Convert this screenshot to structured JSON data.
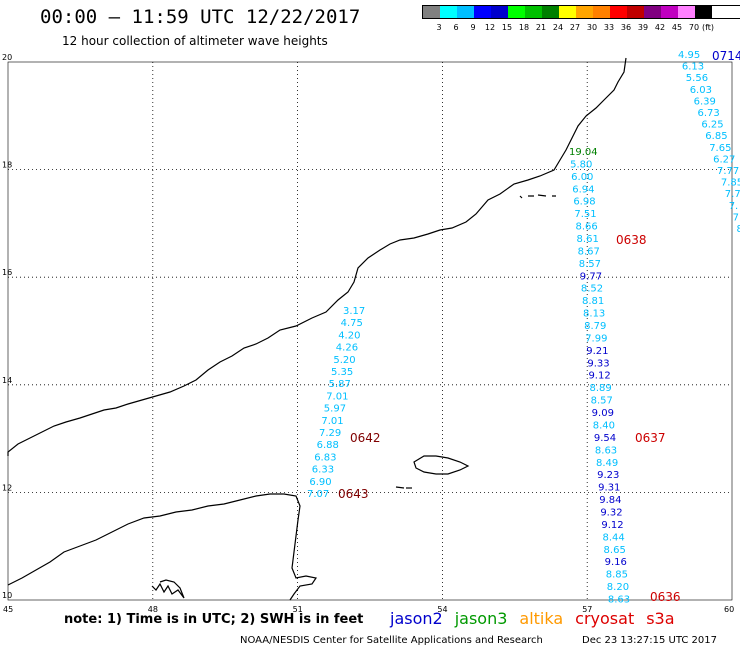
{
  "header": {
    "title": "00:00 – 11:59 UTC 12/22/2017",
    "subtitle": "12 hour collection of altimeter wave heights"
  },
  "legend": {
    "colors": [
      "#808080",
      "#00ffff",
      "#00bfff",
      "#0000ff",
      "#0000cd",
      "#00ff00",
      "#00c000",
      "#008000",
      "#ffff00",
      "#ffa500",
      "#ff8000",
      "#ff0000",
      "#c00000",
      "#800080",
      "#c000c0",
      "#ff80ff",
      "#000000"
    ],
    "labels": [
      "3",
      "6",
      "9",
      "12",
      "15",
      "18",
      "21",
      "24",
      "27",
      "30",
      "33",
      "36",
      "39",
      "42",
      "45",
      "70"
    ],
    "unit": "(ft)"
  },
  "axes": {
    "x_ticks": [
      "45",
      "48",
      "51",
      "54",
      "57",
      "60"
    ],
    "y_ticks": [
      "20",
      "18",
      "16",
      "14",
      "12",
      "10"
    ]
  },
  "passes": [
    {
      "id": "0642",
      "color": "#800000"
    },
    {
      "id": "0643",
      "color": "#800000"
    },
    {
      "id": "0638",
      "color": "#cc0000"
    },
    {
      "id": "0637",
      "color": "#cc0000"
    },
    {
      "id": "0636",
      "color": "#cc0000"
    },
    {
      "id": "0714",
      "color": "#0000cc"
    }
  ],
  "tracks": {
    "west": [
      {
        "v": "3.17",
        "c": "#00bfff"
      },
      {
        "v": "4.75",
        "c": "#00bfff"
      },
      {
        "v": "4.20",
        "c": "#00bfff"
      },
      {
        "v": "4.26",
        "c": "#00bfff"
      },
      {
        "v": "5.20",
        "c": "#00bfff"
      },
      {
        "v": "5.35",
        "c": "#00bfff"
      },
      {
        "v": "5.87",
        "c": "#00bfff"
      },
      {
        "v": "7.01",
        "c": "#00bfff"
      },
      {
        "v": "5.97",
        "c": "#00bfff"
      },
      {
        "v": "7.01",
        "c": "#00bfff"
      },
      {
        "v": "7.29",
        "c": "#00bfff"
      },
      {
        "v": "6.88",
        "c": "#00bfff"
      },
      {
        "v": "6.83",
        "c": "#00bfff"
      },
      {
        "v": "6.33",
        "c": "#00bfff"
      },
      {
        "v": "6.90",
        "c": "#00bfff"
      },
      {
        "v": "7.07",
        "c": "#00bfff"
      }
    ],
    "middle": [
      {
        "v": "19.04",
        "c": "#008000"
      },
      {
        "v": "5.80",
        "c": "#00bfff"
      },
      {
        "v": "6.00",
        "c": "#00bfff"
      },
      {
        "v": "6.94",
        "c": "#00bfff"
      },
      {
        "v": "6.98",
        "c": "#00bfff"
      },
      {
        "v": "7.51",
        "c": "#00bfff"
      },
      {
        "v": "8.66",
        "c": "#00bfff"
      },
      {
        "v": "8.61",
        "c": "#00bfff"
      },
      {
        "v": "8.67",
        "c": "#00bfff"
      },
      {
        "v": "8.57",
        "c": "#00bfff"
      },
      {
        "v": "9.77",
        "c": "#0000cd"
      },
      {
        "v": "8.52",
        "c": "#00bfff"
      },
      {
        "v": "8.81",
        "c": "#00bfff"
      },
      {
        "v": "8.13",
        "c": "#00bfff"
      },
      {
        "v": "8.79",
        "c": "#00bfff"
      },
      {
        "v": "7.99",
        "c": "#00bfff"
      },
      {
        "v": "9.21",
        "c": "#0000cd"
      },
      {
        "v": "9.33",
        "c": "#0000cd"
      },
      {
        "v": "9.12",
        "c": "#0000cd"
      },
      {
        "v": "8.89",
        "c": "#00bfff"
      },
      {
        "v": "8.57",
        "c": "#00bfff"
      },
      {
        "v": "9.09",
        "c": "#0000cd"
      },
      {
        "v": "8.40",
        "c": "#00bfff"
      },
      {
        "v": "9.54",
        "c": "#0000cd"
      },
      {
        "v": "8.63",
        "c": "#00bfff"
      },
      {
        "v": "8.49",
        "c": "#00bfff"
      },
      {
        "v": "9.23",
        "c": "#0000cd"
      },
      {
        "v": "9.31",
        "c": "#0000cd"
      },
      {
        "v": "9.84",
        "c": "#0000cd"
      },
      {
        "v": "9.32",
        "c": "#0000cd"
      },
      {
        "v": "9.12",
        "c": "#0000cd"
      },
      {
        "v": "8.44",
        "c": "#00bfff"
      },
      {
        "v": "8.65",
        "c": "#00bfff"
      },
      {
        "v": "9.16",
        "c": "#0000cd"
      },
      {
        "v": "8.85",
        "c": "#00bfff"
      },
      {
        "v": "8.20",
        "c": "#00bfff"
      },
      {
        "v": "8.63",
        "c": "#00bfff"
      }
    ],
    "east": [
      {
        "v": "4.95",
        "c": "#00bfff"
      },
      {
        "v": "6.13",
        "c": "#00bfff"
      },
      {
        "v": "5.56",
        "c": "#00bfff"
      },
      {
        "v": "6.03",
        "c": "#00bfff"
      },
      {
        "v": "6.39",
        "c": "#00bfff"
      },
      {
        "v": "6.73",
        "c": "#00bfff"
      },
      {
        "v": "6.25",
        "c": "#00bfff"
      },
      {
        "v": "6.85",
        "c": "#00bfff"
      },
      {
        "v": "7.65",
        "c": "#00bfff"
      },
      {
        "v": "6.27",
        "c": "#00bfff"
      },
      {
        "v": "7.77",
        "c": "#00bfff"
      },
      {
        "v": "7.85",
        "c": "#00bfff"
      },
      {
        "v": "7.7",
        "c": "#00bfff"
      },
      {
        "v": "7.",
        "c": "#00bfff"
      },
      {
        "v": "7",
        "c": "#00bfff"
      },
      {
        "v": "8",
        "c": "#00bfff"
      }
    ]
  },
  "footer": {
    "note": "note: 1) Time is in UTC; 2) SWH is in feet",
    "satellites": [
      {
        "name": "jason2",
        "color": "#0000cc"
      },
      {
        "name": "jason3",
        "color": "#009900"
      },
      {
        "name": "altika",
        "color": "#ff9900"
      },
      {
        "name": "cryosat",
        "color": "#dd0000"
      },
      {
        "name": "s3a",
        "color": "#dd0000"
      }
    ],
    "credit": "NOAA/NESDIS Center for Satellite Applications and Research",
    "timestamp": "Dec 23 13:27:15 UTC 2017"
  }
}
